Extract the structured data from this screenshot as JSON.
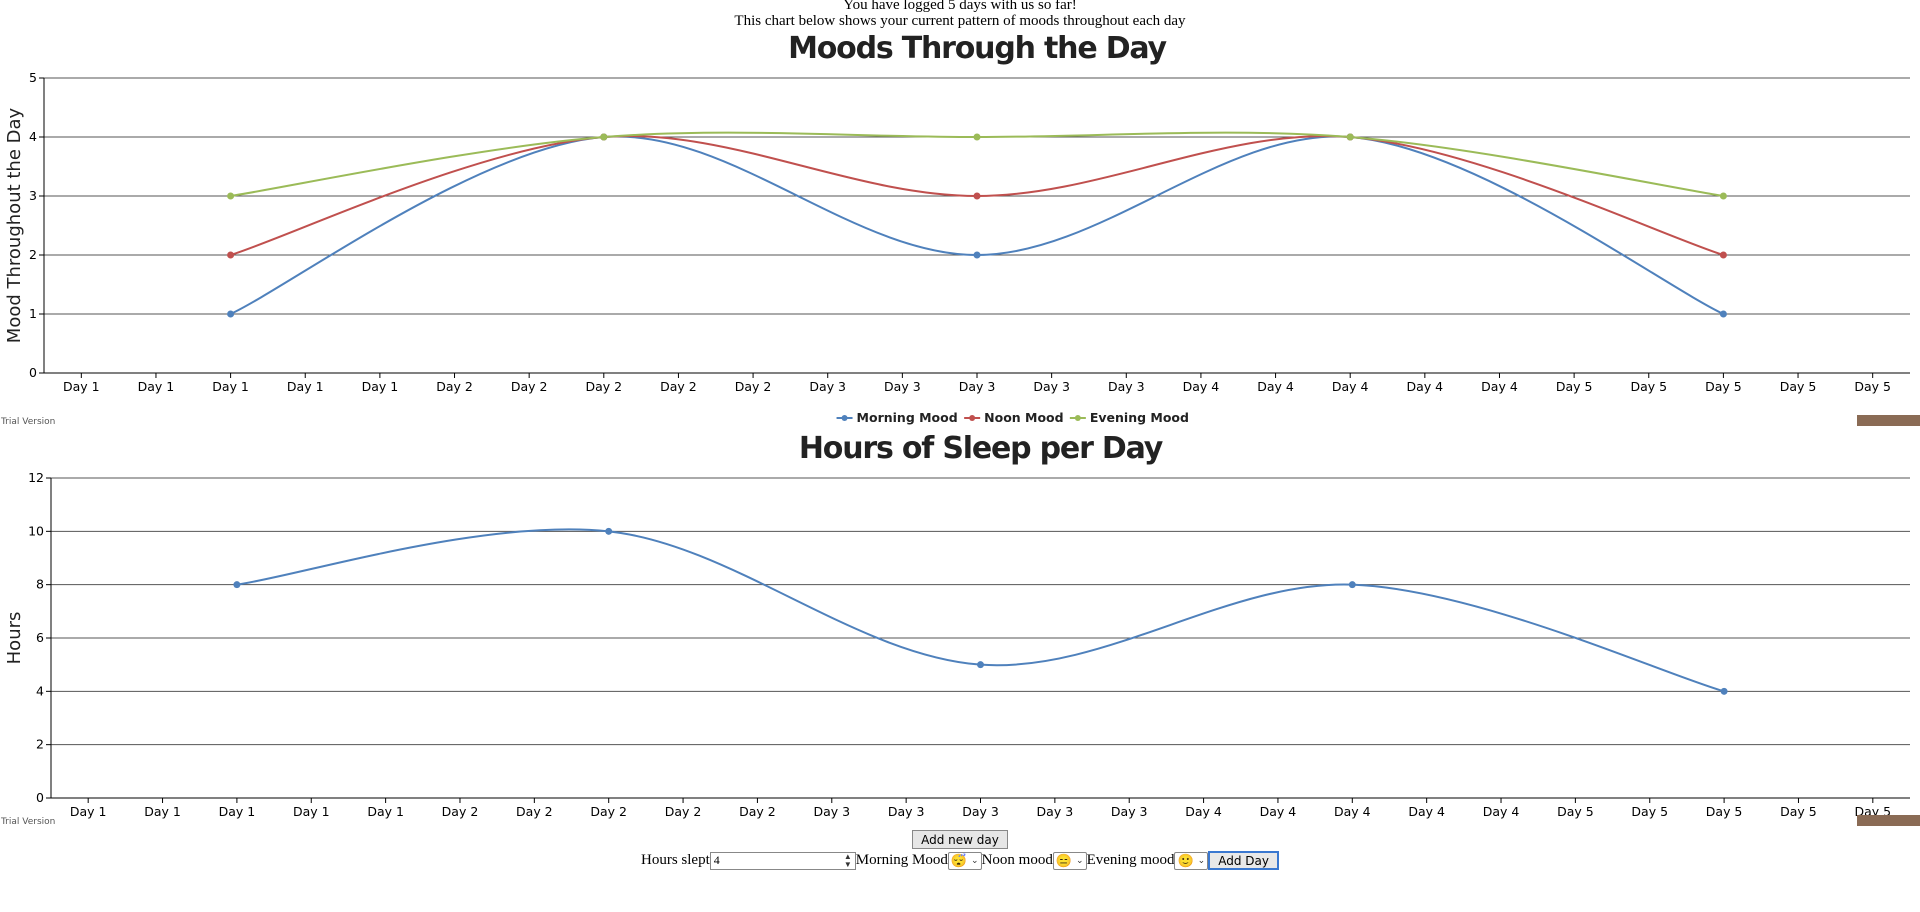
{
  "intro": {
    "line1": "You have logged 5 days with us so far!",
    "line2": "This chart below shows your current pattern of moods throughout each day"
  },
  "chart_data": [
    {
      "type": "line",
      "title": "Moods Through the Day",
      "xlabel": "",
      "ylabel": "Mood Throughout the Day",
      "x_tick_labels": [
        "Day 1",
        "Day 1",
        "Day 1",
        "Day 1",
        "Day 1",
        "Day 2",
        "Day 2",
        "Day 2",
        "Day 2",
        "Day 2",
        "Day 3",
        "Day 3",
        "Day 3",
        "Day 3",
        "Day 3",
        "Day 4",
        "Day 4",
        "Day 4",
        "Day 4",
        "Day 4",
        "Day 5",
        "Day 5",
        "Day 5",
        "Day 5",
        "Day 5"
      ],
      "ylim": [
        0,
        5
      ],
      "y_ticks": [
        0,
        1,
        2,
        3,
        4,
        5
      ],
      "grid": true,
      "smooth": true,
      "legend_position": "bottom-center",
      "x": [
        1,
        2,
        3,
        4,
        5
      ],
      "series": [
        {
          "name": "Morning Mood",
          "color": "#4f81bc",
          "values": [
            1,
            4,
            2,
            4,
            1
          ]
        },
        {
          "name": "Noon Mood",
          "color": "#c0504e",
          "values": [
            2,
            4,
            3,
            4,
            2
          ]
        },
        {
          "name": "Evening Mood",
          "color": "#9bbb58",
          "values": [
            3,
            4,
            4,
            4,
            3
          ]
        }
      ],
      "watermark": "Trial Version"
    },
    {
      "type": "line",
      "title": "Hours of Sleep per Day",
      "xlabel": "",
      "ylabel": "Hours",
      "x_tick_labels": [
        "Day 1",
        "Day 1",
        "Day 1",
        "Day 1",
        "Day 1",
        "Day 2",
        "Day 2",
        "Day 2",
        "Day 2",
        "Day 2",
        "Day 3",
        "Day 3",
        "Day 3",
        "Day 3",
        "Day 3",
        "Day 4",
        "Day 4",
        "Day 4",
        "Day 4",
        "Day 4",
        "Day 5",
        "Day 5",
        "Day 5",
        "Day 5",
        "Day 5"
      ],
      "ylim": [
        0,
        12
      ],
      "y_ticks": [
        0,
        2,
        4,
        6,
        8,
        10,
        12
      ],
      "grid": true,
      "smooth": true,
      "x": [
        1,
        2,
        3,
        4,
        5
      ],
      "series": [
        {
          "color": "#4f81bc",
          "values": [
            8,
            10,
            5,
            8,
            4
          ]
        }
      ],
      "watermark": "Trial Version"
    }
  ],
  "controls": {
    "add_new_day_label": "Add new day",
    "hours_label": "Hours slept",
    "hours_value": "4",
    "morning_label": "Morning Mood",
    "morning_value": "😴",
    "noon_label": "Noon mood",
    "noon_value": "😑",
    "evening_label": "Evening mood",
    "evening_value": "🙂",
    "add_day_label": "Add Day"
  },
  "colors": {
    "morning": "#4f81bc",
    "noon": "#c0504e",
    "evening": "#9bbb58",
    "badge": "#8a6b55"
  }
}
